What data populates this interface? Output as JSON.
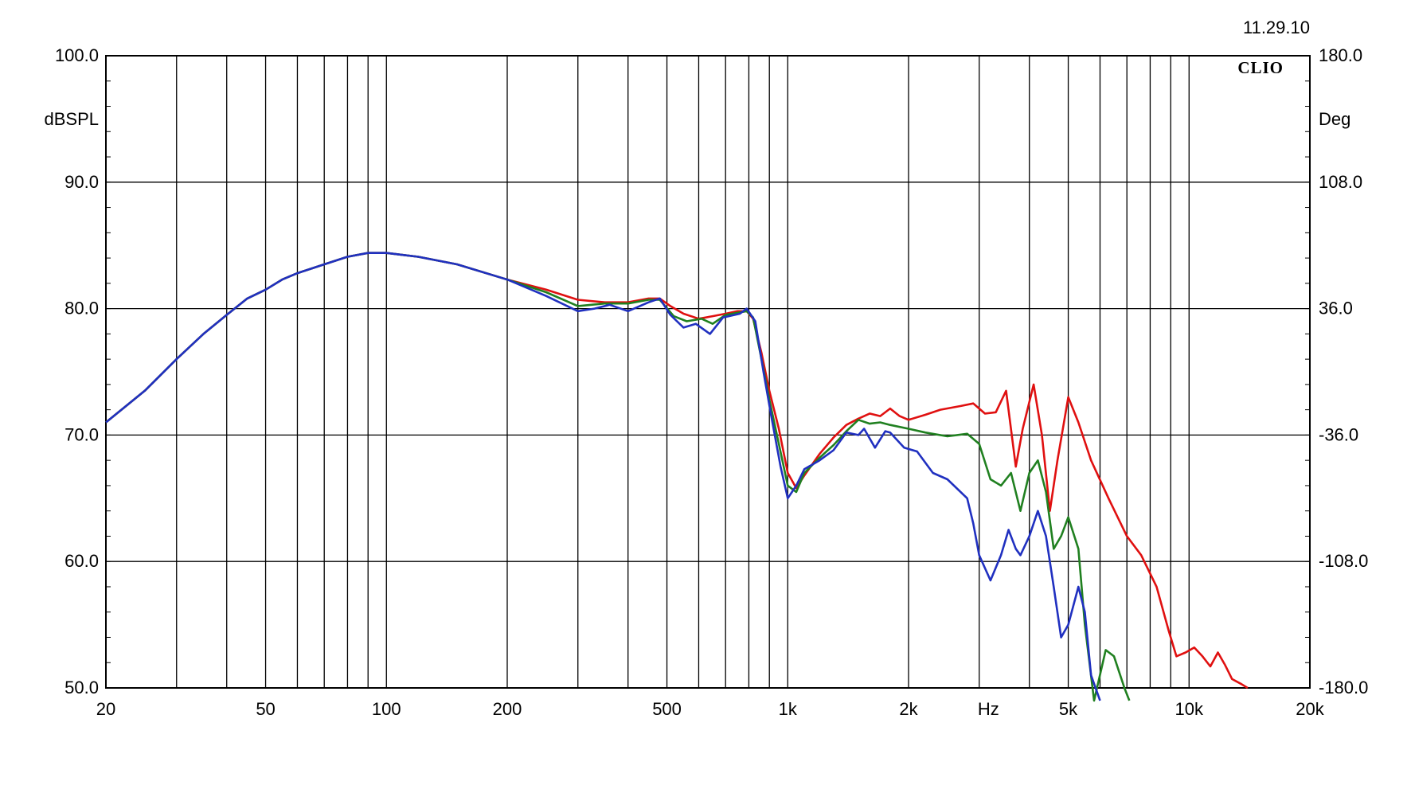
{
  "header": {
    "date": "11.29.10",
    "brand": "CLIO"
  },
  "chart_data": {
    "type": "line",
    "x_scale": "log",
    "xlim": [
      20,
      20000
    ],
    "ylim": [
      50,
      100
    ],
    "y2lim": [
      -180,
      180
    ],
    "ylabel": "dBSPL",
    "y2label": "Deg",
    "xlabel": "Hz",
    "grid": true,
    "x_tick_labels": [
      {
        "v": 20,
        "t": "20"
      },
      {
        "v": 50,
        "t": "50"
      },
      {
        "v": 100,
        "t": "100"
      },
      {
        "v": 200,
        "t": "200"
      },
      {
        "v": 500,
        "t": "500"
      },
      {
        "v": 1000,
        "t": "1k"
      },
      {
        "v": 2000,
        "t": "2k"
      },
      {
        "v": 5000,
        "t": "5k"
      },
      {
        "v": 10000,
        "t": "10k"
      },
      {
        "v": 20000,
        "t": "20k"
      }
    ],
    "x_unit_label": {
      "v": 3162,
      "t": "Hz"
    },
    "y_ticks": [
      {
        "v": 100,
        "t": "100.0"
      },
      {
        "v": 90,
        "t": "90.0"
      },
      {
        "v": 80,
        "t": "80.0"
      },
      {
        "v": 70,
        "t": "70.0"
      },
      {
        "v": 60,
        "t": "60.0"
      },
      {
        "v": 50,
        "t": "50.0"
      }
    ],
    "y2_ticks": [
      {
        "v": 180,
        "t": "180.0"
      },
      {
        "v": 108,
        "t": "108.0"
      },
      {
        "v": 36,
        "t": "36.0"
      },
      {
        "v": -36,
        "t": "-36.0"
      },
      {
        "v": -108,
        "t": "-108.0"
      },
      {
        "v": -180,
        "t": "-180.0"
      }
    ],
    "series": [
      {
        "color": "#e01010",
        "points": [
          [
            20,
            71.0
          ],
          [
            25,
            73.5
          ],
          [
            30,
            76.0
          ],
          [
            35,
            78.0
          ],
          [
            40,
            79.5
          ],
          [
            45,
            80.8
          ],
          [
            50,
            81.5
          ],
          [
            55,
            82.3
          ],
          [
            60,
            82.8
          ],
          [
            70,
            83.5
          ],
          [
            80,
            84.1
          ],
          [
            90,
            84.4
          ],
          [
            100,
            84.4
          ],
          [
            120,
            84.1
          ],
          [
            150,
            83.5
          ],
          [
            200,
            82.3
          ],
          [
            250,
            81.5
          ],
          [
            300,
            80.7
          ],
          [
            350,
            80.5
          ],
          [
            400,
            80.5
          ],
          [
            450,
            80.8
          ],
          [
            480,
            80.8
          ],
          [
            510,
            80.2
          ],
          [
            550,
            79.6
          ],
          [
            600,
            79.2
          ],
          [
            650,
            79.4
          ],
          [
            700,
            79.6
          ],
          [
            750,
            79.8
          ],
          [
            790,
            79.8
          ],
          [
            820,
            79.2
          ],
          [
            860,
            76.5
          ],
          [
            900,
            73.5
          ],
          [
            950,
            70.5
          ],
          [
            1000,
            67.0
          ],
          [
            1050,
            65.8
          ],
          [
            1100,
            66.8
          ],
          [
            1200,
            68.5
          ],
          [
            1300,
            69.8
          ],
          [
            1400,
            70.8
          ],
          [
            1500,
            71.3
          ],
          [
            1600,
            71.7
          ],
          [
            1700,
            71.5
          ],
          [
            1800,
            72.1
          ],
          [
            1900,
            71.5
          ],
          [
            2000,
            71.2
          ],
          [
            2200,
            71.6
          ],
          [
            2400,
            72.0
          ],
          [
            2700,
            72.3
          ],
          [
            2900,
            72.5
          ],
          [
            3100,
            71.7
          ],
          [
            3300,
            71.8
          ],
          [
            3500,
            73.5
          ],
          [
            3700,
            67.5
          ],
          [
            3850,
            70.5
          ],
          [
            4100,
            74.0
          ],
          [
            4300,
            70.0
          ],
          [
            4500,
            64.0
          ],
          [
            4700,
            68.0
          ],
          [
            5000,
            73.0
          ],
          [
            5300,
            71.0
          ],
          [
            5700,
            68.0
          ],
          [
            6300,
            65.0
          ],
          [
            7000,
            62.0
          ],
          [
            7600,
            60.5
          ],
          [
            8300,
            58.0
          ],
          [
            8900,
            54.5
          ],
          [
            9300,
            52.5
          ],
          [
            9800,
            52.8
          ],
          [
            10300,
            53.2
          ],
          [
            10800,
            52.5
          ],
          [
            11300,
            51.7
          ],
          [
            11800,
            52.8
          ],
          [
            12300,
            51.8
          ],
          [
            12800,
            50.7
          ],
          [
            13500,
            50.3
          ],
          [
            14000,
            50.0
          ]
        ]
      },
      {
        "color": "#208020",
        "points": [
          [
            20,
            71.0
          ],
          [
            25,
            73.5
          ],
          [
            30,
            76.0
          ],
          [
            35,
            78.0
          ],
          [
            40,
            79.5
          ],
          [
            45,
            80.8
          ],
          [
            50,
            81.5
          ],
          [
            55,
            82.3
          ],
          [
            60,
            82.8
          ],
          [
            70,
            83.5
          ],
          [
            80,
            84.1
          ],
          [
            90,
            84.4
          ],
          [
            100,
            84.4
          ],
          [
            120,
            84.1
          ],
          [
            150,
            83.5
          ],
          [
            200,
            82.3
          ],
          [
            250,
            81.3
          ],
          [
            300,
            80.2
          ],
          [
            350,
            80.4
          ],
          [
            400,
            80.4
          ],
          [
            450,
            80.7
          ],
          [
            480,
            80.7
          ],
          [
            520,
            79.4
          ],
          [
            560,
            79.0
          ],
          [
            610,
            79.2
          ],
          [
            650,
            78.8
          ],
          [
            700,
            79.5
          ],
          [
            790,
            79.8
          ],
          [
            820,
            79.3
          ],
          [
            860,
            76.0
          ],
          [
            900,
            72.8
          ],
          [
            950,
            69.3
          ],
          [
            1000,
            66.0
          ],
          [
            1050,
            65.5
          ],
          [
            1100,
            67.0
          ],
          [
            1200,
            68.2
          ],
          [
            1300,
            69.2
          ],
          [
            1400,
            70.3
          ],
          [
            1500,
            71.2
          ],
          [
            1600,
            70.9
          ],
          [
            1700,
            71.0
          ],
          [
            1800,
            70.8
          ],
          [
            2000,
            70.5
          ],
          [
            2200,
            70.2
          ],
          [
            2500,
            69.9
          ],
          [
            2800,
            70.1
          ],
          [
            3000,
            69.3
          ],
          [
            3200,
            66.5
          ],
          [
            3400,
            66.0
          ],
          [
            3600,
            67.0
          ],
          [
            3800,
            64.0
          ],
          [
            4000,
            67.0
          ],
          [
            4200,
            68.0
          ],
          [
            4400,
            65.5
          ],
          [
            4600,
            61.0
          ],
          [
            4800,
            62.0
          ],
          [
            5000,
            63.5
          ],
          [
            5300,
            61.0
          ],
          [
            5500,
            55.0
          ],
          [
            5800,
            49.0
          ],
          [
            6200,
            53.0
          ],
          [
            6500,
            52.5
          ],
          [
            6900,
            50.0
          ],
          [
            7100,
            49.0
          ]
        ]
      },
      {
        "color": "#2030c0",
        "points": [
          [
            20,
            71.0
          ],
          [
            25,
            73.5
          ],
          [
            30,
            76.0
          ],
          [
            35,
            78.0
          ],
          [
            40,
            79.5
          ],
          [
            45,
            80.8
          ],
          [
            50,
            81.5
          ],
          [
            55,
            82.3
          ],
          [
            60,
            82.8
          ],
          [
            70,
            83.5
          ],
          [
            80,
            84.1
          ],
          [
            90,
            84.4
          ],
          [
            100,
            84.4
          ],
          [
            120,
            84.1
          ],
          [
            150,
            83.5
          ],
          [
            200,
            82.3
          ],
          [
            250,
            81.0
          ],
          [
            300,
            79.8
          ],
          [
            330,
            80.0
          ],
          [
            360,
            80.3
          ],
          [
            400,
            79.8
          ],
          [
            450,
            80.5
          ],
          [
            480,
            80.8
          ],
          [
            510,
            79.5
          ],
          [
            550,
            78.5
          ],
          [
            590,
            78.8
          ],
          [
            640,
            78.0
          ],
          [
            690,
            79.3
          ],
          [
            760,
            79.6
          ],
          [
            790,
            80.0
          ],
          [
            830,
            79.0
          ],
          [
            870,
            75.0
          ],
          [
            910,
            71.5
          ],
          [
            960,
            67.5
          ],
          [
            1000,
            65.0
          ],
          [
            1050,
            66.0
          ],
          [
            1100,
            67.3
          ],
          [
            1200,
            68.0
          ],
          [
            1300,
            68.8
          ],
          [
            1400,
            70.2
          ],
          [
            1500,
            70.0
          ],
          [
            1550,
            70.5
          ],
          [
            1650,
            69.0
          ],
          [
            1750,
            70.3
          ],
          [
            1800,
            70.2
          ],
          [
            1950,
            69.0
          ],
          [
            2100,
            68.7
          ],
          [
            2300,
            67.0
          ],
          [
            2500,
            66.5
          ],
          [
            2800,
            65.0
          ],
          [
            2900,
            63.0
          ],
          [
            3000,
            60.5
          ],
          [
            3200,
            58.5
          ],
          [
            3400,
            60.5
          ],
          [
            3550,
            62.5
          ],
          [
            3700,
            61.0
          ],
          [
            3800,
            60.5
          ],
          [
            4000,
            62.0
          ],
          [
            4200,
            64.0
          ],
          [
            4400,
            62.0
          ],
          [
            4600,
            58.0
          ],
          [
            4800,
            54.0
          ],
          [
            5000,
            55.0
          ],
          [
            5300,
            58.0
          ],
          [
            5500,
            56.0
          ],
          [
            5700,
            51.0
          ],
          [
            6000,
            49.0
          ]
        ]
      }
    ]
  }
}
